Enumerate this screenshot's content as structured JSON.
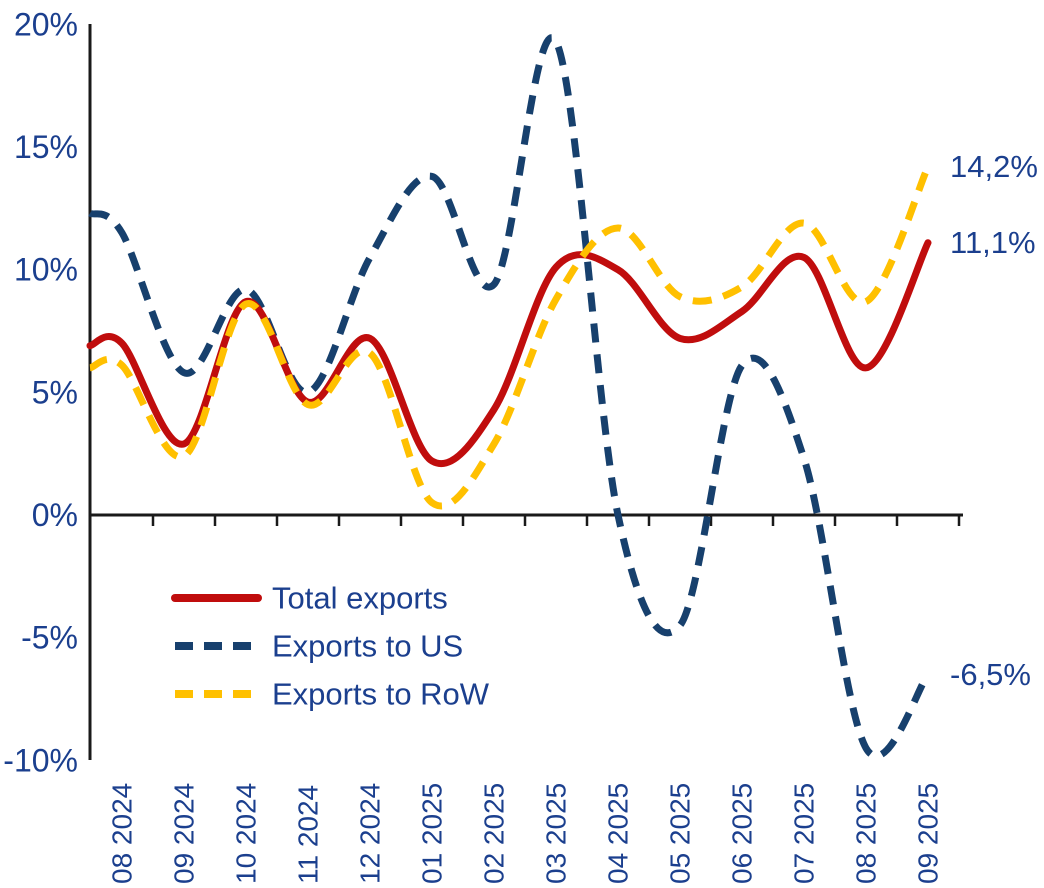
{
  "chart_data": {
    "type": "line",
    "title": "",
    "xlabel": "",
    "ylabel": "",
    "unit": "%",
    "grid": false,
    "legend_position": "inside bottom-left",
    "x": [
      "08 2024",
      "09 2024",
      "10 2024",
      "11 2024",
      "12 2024",
      "01 2025",
      "02 2025",
      "03 2025",
      "04 2025",
      "05 2025",
      "06 2025",
      "07 2025",
      "08 2025",
      "09 2025"
    ],
    "y_axis": {
      "ylim": [
        -10,
        20
      ],
      "ticks": [
        20,
        15,
        10,
        5,
        0,
        -5,
        -10
      ],
      "tick_labels": [
        "20%",
        "15%",
        "10%",
        "5%",
        "0%",
        "-5%",
        "-10%"
      ]
    },
    "series": [
      {
        "name": "Total exports",
        "slug": "total-exports",
        "line_style": "solid",
        "color": "#C00D0D",
        "edge_start_value": 6.9,
        "values": [
          7.0,
          2.9,
          8.7,
          4.6,
          7.2,
          2.2,
          4.3,
          10.1,
          10.0,
          7.2,
          8.3,
          10.5,
          6.0,
          11.1
        ],
        "end_label": "11,1%"
      },
      {
        "name": "Exports to US",
        "slug": "exports-to-us",
        "line_style": "dashed",
        "color": "#17406D",
        "edge_start_value": 12.3,
        "values": [
          11.5,
          5.8,
          9.2,
          5.0,
          10.5,
          13.8,
          9.4,
          19.3,
          0.0,
          -4.5,
          6.1,
          2.3,
          -9.5,
          -6.5
        ],
        "end_label": "-6,5%"
      },
      {
        "name": "Exports to RoW",
        "slug": "exports-to-row",
        "line_style": "dashed",
        "color": "#FFC000",
        "edge_start_value": 6.0,
        "values": [
          6.1,
          2.4,
          8.6,
          4.5,
          6.6,
          0.5,
          2.9,
          8.8,
          11.7,
          8.9,
          9.3,
          11.9,
          8.7,
          14.2
        ],
        "end_label": "14,2%"
      }
    ]
  },
  "colors": {
    "label_text": "#1B3F8E",
    "axis": "#1A1A1A",
    "background": "#FFFFFF"
  }
}
